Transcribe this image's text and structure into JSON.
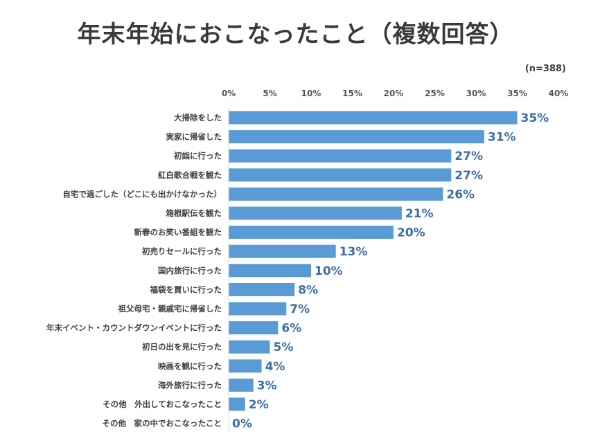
{
  "chart_data": {
    "type": "bar",
    "orientation": "horizontal",
    "title": "年末年始におこなったこと（複数回答）",
    "note": "(n=388)",
    "xlim": [
      0,
      40
    ],
    "ticks": [
      "0%",
      "5%",
      "10%",
      "15%",
      "20%",
      "25%",
      "30%",
      "35%",
      "40%"
    ],
    "categories": [
      "大掃除をした",
      "実家に帰省した",
      "初詣に行った",
      "紅白歌合戦を観た",
      "自宅で過ごした（どこにも出かけなかった）",
      "箱根駅伝を観た",
      "新春のお笑い番組を観た",
      "初売りセールに行った",
      "国内旅行に行った",
      "福袋を買いに行った",
      "祖父母宅・親戚宅に帰省した",
      "年末イベント・カウントダウンイベントに行った",
      "初日の出を見に行った",
      "映画を観に行った",
      "海外旅行に行った",
      "その他　外出しておこなったこと",
      "その他　家の中でおこなったこと"
    ],
    "values": [
      35,
      31,
      27,
      27,
      26,
      21,
      20,
      13,
      10,
      8,
      7,
      6,
      5,
      4,
      3,
      2,
      0
    ],
    "labels": [
      "35%",
      "31%",
      "27%",
      "27%",
      "26%",
      "21%",
      "20%",
      "13%",
      "10%",
      "8%",
      "7%",
      "6%",
      "5%",
      "4%",
      "3%",
      "2%",
      "0%"
    ],
    "bar_color": "#5b9bd5",
    "label_color": "#3a6fa8",
    "gridlines": false,
    "legend": "none"
  }
}
